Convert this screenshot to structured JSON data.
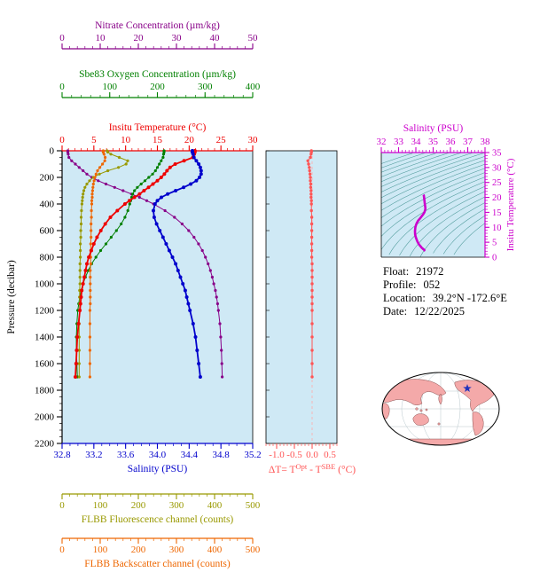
{
  "float_info": {
    "lines": [
      {
        "label": "Float:",
        "value": "21972"
      },
      {
        "label": "Profile:",
        "value": "052"
      },
      {
        "label": "Location:",
        "value": "39.2°N -172.6°E"
      },
      {
        "label": "Date:",
        "value": "12/22/2025"
      }
    ]
  },
  "delta_title": {
    "pre": "ΔT= T",
    "sup1": "Opt",
    "mid": " - T",
    "sup2": "SBE",
    "post": " (°C)"
  },
  "colors": {
    "panel_background": "#cfe9f5",
    "map_land": "#f4a9a9",
    "location_star": "#2233bb"
  },
  "chart_data": {
    "type": "line",
    "title": "",
    "pressure_dbar": [
      0,
      10,
      25,
      50,
      75,
      100,
      125,
      150,
      175,
      200,
      225,
      250,
      275,
      300,
      325,
      350,
      375,
      400,
      450,
      500,
      550,
      600,
      650,
      700,
      750,
      800,
      850,
      900,
      950,
      1000,
      1050,
      1100,
      1150,
      1200,
      1300,
      1400,
      1500,
      1600,
      1700
    ],
    "main_panel": {
      "background": "#cfe9f5",
      "y_axis": {
        "id": "pressure",
        "title": "Pressure (decibar)",
        "range": [
          0,
          2200
        ],
        "minor_step": 50,
        "color": "#000000",
        "ticks": [
          "0",
          "200",
          "400",
          "600",
          "800",
          "1000",
          "1200",
          "1400",
          "1600",
          "1800",
          "2000",
          "2200"
        ]
      },
      "x_axes": [
        {
          "id": "temperature",
          "title": "Insitu Temperature (°C)",
          "range": [
            0,
            30
          ],
          "minor_step": 1,
          "color": "#ee0000",
          "ticks": [
            "0",
            "5",
            "10",
            "15",
            "20",
            "25",
            "30"
          ]
        },
        {
          "id": "oxygen",
          "title": "Sbe83 Oxygen Concentration (µm/kg)",
          "range": [
            0,
            400
          ],
          "minor_step": 20,
          "color": "#008000",
          "ticks": [
            "0",
            "100",
            "200",
            "300",
            "400"
          ]
        },
        {
          "id": "nitrate",
          "title": "Nitrate Concentration (µm/kg)",
          "range": [
            0,
            50
          ],
          "minor_step": 2,
          "color": "#880088",
          "ticks": [
            "0",
            "10",
            "20",
            "30",
            "40",
            "50"
          ]
        },
        {
          "id": "salinity",
          "title": "Salinity (PSU)",
          "range": [
            32.8,
            35.2
          ],
          "minor_step": 0.1,
          "color": "#0000cc",
          "ticks": [
            "32.8",
            "33.2",
            "33.6",
            "34.0",
            "34.4",
            "34.8",
            "35.2"
          ]
        },
        {
          "id": "fluorescence",
          "title": "FLBB Fluorescence channel (counts)",
          "range": [
            0,
            500
          ],
          "minor_step": 20,
          "color": "#999900",
          "ticks": [
            "0",
            "100",
            "200",
            "300",
            "400",
            "500"
          ]
        },
        {
          "id": "backscatter",
          "title": "FLBB Backscatter channel (counts)",
          "range": [
            0,
            500
          ],
          "minor_step": 20,
          "color": "#ee6600",
          "ticks": [
            "0",
            "100",
            "200",
            "300",
            "400",
            "500"
          ]
        }
      ],
      "series": [
        {
          "id": "nitrate",
          "axis": "nitrate",
          "color": "#880088",
          "values": [
            1.5,
            1.5,
            1.6,
            1.8,
            2.5,
            3.5,
            4.5,
            5.5,
            6.5,
            7.8,
            9.5,
            11.5,
            13.8,
            16.0,
            18.2,
            20.3,
            22.2,
            24.0,
            27.0,
            29.5,
            31.5,
            33.2,
            34.6,
            35.8,
            36.8,
            37.6,
            38.3,
            38.9,
            39.4,
            39.8,
            40.2,
            40.5,
            40.8,
            41.0,
            41.4,
            41.6,
            41.8,
            41.9,
            42.0
          ]
        },
        {
          "id": "oxygen",
          "axis": "oxygen",
          "color": "#008000",
          "values": [
            214,
            214,
            213,
            212,
            208,
            204,
            200,
            196,
            190,
            182,
            174,
            166,
            158,
            152,
            148,
            146,
            144,
            142,
            138,
            132,
            124,
            114,
            103,
            92,
            81,
            71,
            62,
            55,
            49,
            44,
            40,
            37,
            35,
            33,
            31,
            30,
            30,
            31,
            32
          ]
        },
        {
          "id": "fluorescence",
          "axis": "fluorescence",
          "color": "#999900",
          "values": [
            118,
            120,
            128,
            150,
            172,
            168,
            148,
            120,
            98,
            82,
            72,
            65,
            60,
            57,
            55,
            54,
            53,
            52,
            51,
            50,
            50,
            49,
            49,
            48,
            48,
            48,
            47,
            47,
            47,
            47,
            46,
            46,
            46,
            46,
            45,
            45,
            45,
            45,
            45
          ]
        },
        {
          "id": "backscatter",
          "axis": "backscatter",
          "color": "#ee6600",
          "values": [
            108,
            108,
            110,
            113,
            112,
            106,
            99,
            93,
            89,
            86,
            84,
            82,
            81,
            80,
            79,
            79,
            78,
            78,
            77,
            77,
            76,
            76,
            76,
            75,
            75,
            75,
            75,
            74,
            74,
            74,
            74,
            74,
            74,
            73,
            73,
            73,
            73,
            73,
            73
          ]
        },
        {
          "id": "temperature",
          "axis": "temperature",
          "color": "#ee0000",
          "values": [
            20.9,
            20.9,
            20.8,
            20.6,
            19.2,
            17.8,
            17.0,
            16.5,
            16.1,
            15.6,
            15.0,
            14.3,
            13.6,
            12.9,
            12.2,
            11.4,
            10.6,
            9.9,
            8.7,
            7.6,
            6.8,
            6.1,
            5.5,
            5.0,
            4.6,
            4.2,
            3.9,
            3.7,
            3.5,
            3.3,
            3.1,
            3.0,
            2.9,
            2.8,
            2.6,
            2.4,
            2.3,
            2.2,
            2.1
          ]
        },
        {
          "id": "salinity",
          "axis": "salinity",
          "color": "#0000cc",
          "values": [
            34.44,
            34.44,
            34.45,
            34.46,
            34.49,
            34.52,
            34.54,
            34.55,
            34.55,
            34.53,
            34.49,
            34.42,
            34.33,
            34.23,
            34.13,
            34.05,
            34.0,
            33.97,
            33.95,
            33.96,
            33.99,
            34.03,
            34.07,
            34.11,
            34.15,
            34.19,
            34.23,
            34.26,
            34.29,
            34.32,
            34.35,
            34.37,
            34.39,
            34.41,
            34.45,
            34.48,
            34.5,
            34.52,
            34.54
          ]
        }
      ]
    },
    "delta_panel": {
      "background": "#cfe9f5",
      "x_axis": {
        "id": "delta_t",
        "range": [
          -1.3,
          0.7
        ],
        "minor_step": 0.1,
        "color": "#ff5555",
        "ticks": [
          "-1.0",
          "-0.5",
          "0.0",
          "0.5"
        ]
      },
      "series": {
        "id": "delta_t",
        "color": "#ff5555",
        "values": [
          -0.02,
          -0.02,
          -0.03,
          -0.05,
          -0.12,
          -0.1,
          -0.08,
          -0.07,
          -0.06,
          -0.05,
          -0.05,
          -0.04,
          -0.04,
          -0.03,
          -0.03,
          -0.03,
          -0.02,
          -0.02,
          -0.02,
          -0.01,
          -0.01,
          -0.01,
          -0.01,
          -0.01,
          -0.01,
          -0.01,
          0.0,
          0.0,
          0.0,
          0.0,
          0.0,
          0.0,
          0.0,
          0.0,
          0.0,
          0.0,
          0.0,
          0.0,
          0.0
        ]
      }
    },
    "ts_panel": {
      "background": "#cfe9f5",
      "x_axis": {
        "id": "ts_salinity",
        "title": "Salinity (PSU)",
        "range": [
          32,
          38
        ],
        "minor_step": 0.2,
        "color": "#cc00cc",
        "ticks": [
          "32",
          "33",
          "34",
          "35",
          "36",
          "37",
          "38"
        ]
      },
      "y_axis": {
        "id": "ts_temperature",
        "title": "Insitu Temperature (°C)",
        "range": [
          0,
          35
        ],
        "minor_step": 1,
        "color": "#cc00cc",
        "ticks": [
          "0",
          "5",
          "10",
          "15",
          "20",
          "25",
          "30",
          "35"
        ]
      },
      "curve_color": "#cc00cc",
      "contour_color": "#4d9999",
      "sigma_levels": [
        19,
        19.5,
        20,
        20.5,
        21,
        21.5,
        22,
        22.5,
        23,
        23.5,
        24,
        24.5,
        25,
        25.5,
        26,
        26.5,
        27,
        27.5,
        28,
        28.5,
        29
      ]
    }
  }
}
